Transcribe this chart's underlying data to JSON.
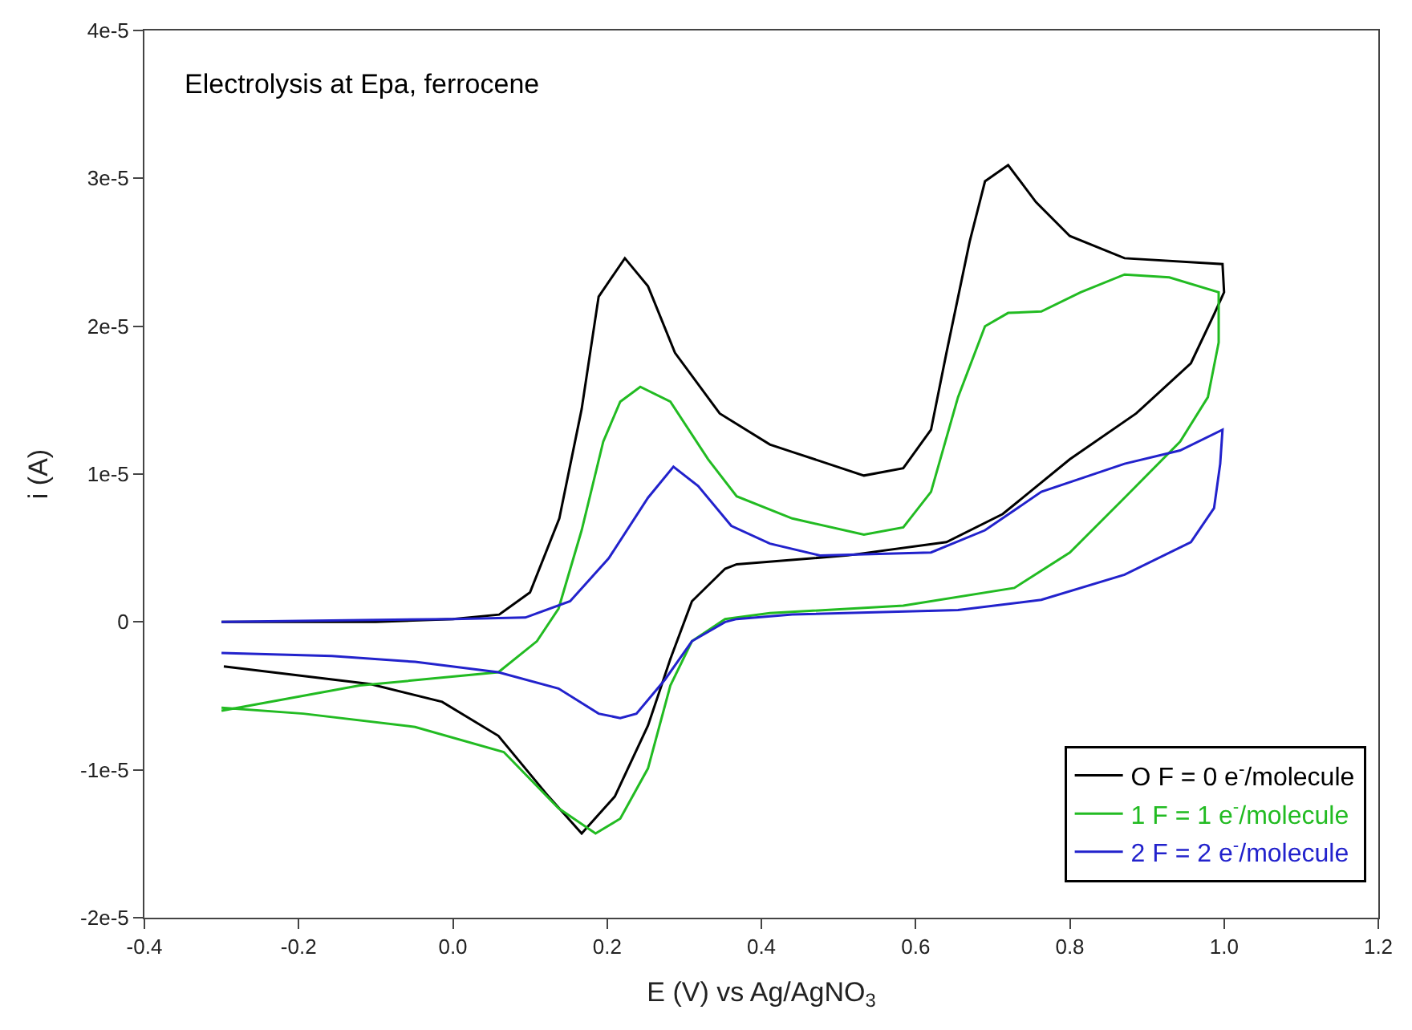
{
  "chart_data": {
    "type": "line",
    "xlabel": "E (V) vs Ag/AgNO$_{3}$",
    "ylabel": "i (A)",
    "annotations": [
      "Electrolysis at Epa, ferrocene"
    ],
    "xlim": [
      -0.4,
      1.2
    ],
    "ylim": [
      -2e-05,
      4e-05
    ],
    "xticks": [
      {
        "value": -0.4,
        "label": "-0.4"
      },
      {
        "value": -0.2,
        "label": "-0.2"
      },
      {
        "value": 0,
        "label": "0.0"
      },
      {
        "value": 0.2,
        "label": "0.2"
      },
      {
        "value": 0.4,
        "label": "0.4"
      },
      {
        "value": 0.6,
        "label": "0.6"
      },
      {
        "value": 0.8,
        "label": "0.8"
      },
      {
        "value": 1.0,
        "label": "1.0"
      },
      {
        "value": 1.2,
        "label": "1.2"
      }
    ],
    "yticks": [
      {
        "value": -2e-05,
        "label": "-2e-5"
      },
      {
        "value": -1e-05,
        "label": "-1e-5"
      },
      {
        "value": 0,
        "label": "0"
      },
      {
        "value": 1e-05,
        "label": "1e-5"
      },
      {
        "value": 2e-05,
        "label": "2e-5"
      },
      {
        "value": 3e-05,
        "label": "3e-5"
      },
      {
        "value": 4e-05,
        "label": "4e-5"
      }
    ],
    "legend": "bottom right",
    "marker": "none",
    "line_style": "solid",
    "series": [
      {
        "name": "O F = 0 e$^{-}$/molecule",
        "color": "#000000",
        "x": [
          -0.3,
          -0.1,
          0.0,
          0.06,
          0.1,
          0.138,
          0.167,
          0.189,
          0.223,
          0.253,
          0.288,
          0.346,
          0.411,
          0.44,
          0.533,
          0.584,
          0.62,
          0.64,
          0.67,
          0.69,
          0.72,
          0.756,
          0.8,
          0.871,
          0.998,
          1.0,
          0.987,
          0.957,
          0.886,
          0.8,
          0.713,
          0.64,
          0.512,
          0.368,
          0.353,
          0.31,
          0.282,
          0.253,
          0.21,
          0.167,
          0.124,
          0.059,
          -0.014,
          -0.107,
          -0.297
        ],
        "values": [
          0,
          0,
          2e-07,
          5e-07,
          2e-06,
          7e-06,
          1.44e-05,
          2.2e-05,
          2.46e-05,
          2.27e-05,
          1.82e-05,
          1.41e-05,
          1.2e-05,
          1.15e-05,
          9.9e-06,
          1.04e-05,
          1.3e-05,
          1.82e-05,
          2.57e-05,
          2.98e-05,
          3.09e-05,
          2.84e-05,
          2.61e-05,
          2.46e-05,
          2.42e-05,
          2.23e-05,
          2.08e-05,
          1.75e-05,
          1.41e-05,
          1.1e-05,
          7.3e-06,
          5.4e-06,
          4.5e-06,
          3.9e-06,
          3.6e-06,
          1.4e-06,
          -2.5e-06,
          -7e-06,
          -1.18e-05,
          -1.43e-05,
          -1.18e-05,
          -7.7e-06,
          -5.4e-06,
          -4.2e-06,
          -3e-06
        ]
      },
      {
        "name": "1 F = 1 e$^{-}$/molecule",
        "color": "#22bb22",
        "x": [
          -0.3,
          -0.121,
          0.059,
          0.109,
          0.137,
          0.167,
          0.195,
          0.217,
          0.243,
          0.282,
          0.331,
          0.368,
          0.44,
          0.533,
          0.584,
          0.62,
          0.655,
          0.69,
          0.72,
          0.763,
          0.814,
          0.871,
          0.929,
          0.993,
          0.993,
          0.979,
          0.943,
          0.871,
          0.8,
          0.728,
          0.584,
          0.411,
          0.353,
          0.31,
          0.282,
          0.253,
          0.217,
          0.185,
          0.137,
          0.066,
          -0.049,
          -0.194,
          -0.3
        ],
        "values": [
          -6e-06,
          -4.3e-06,
          -3.4e-06,
          -1.3e-06,
          9e-07,
          6.2e-06,
          1.22e-05,
          1.49e-05,
          1.59e-05,
          1.49e-05,
          1.1e-05,
          8.5e-06,
          7e-06,
          5.9e-06,
          6.4e-06,
          8.8e-06,
          1.52e-05,
          2e-05,
          2.09e-05,
          2.1e-05,
          2.23e-05,
          2.35e-05,
          2.33e-05,
          2.23e-05,
          1.89e-05,
          1.52e-05,
          1.22e-05,
          8.4e-06,
          4.7e-06,
          2.3e-06,
          1.1e-06,
          6e-07,
          2e-07,
          -1.3e-06,
          -4.3e-06,
          -9.9e-06,
          -1.33e-05,
          -1.43e-05,
          -1.26e-05,
          -8.8e-06,
          -7.1e-06,
          -6.2e-06,
          -5.8e-06
        ]
      },
      {
        "name": "2 F = 2 e$^{-}$/molecule",
        "color": "#2222cc",
        "x": [
          -0.3,
          0.0,
          0.094,
          0.152,
          0.202,
          0.253,
          0.286,
          0.318,
          0.361,
          0.411,
          0.476,
          0.62,
          0.69,
          0.763,
          0.871,
          0.943,
          0.998,
          0.995,
          0.987,
          0.957,
          0.871,
          0.763,
          0.655,
          0.44,
          0.368,
          0.353,
          0.31,
          0.275,
          0.238,
          0.217,
          0.189,
          0.137,
          0.059,
          -0.049,
          -0.157,
          -0.3
        ],
        "values": [
          0,
          2e-07,
          3e-07,
          1.4e-06,
          4.3e-06,
          8.4e-06,
          1.05e-05,
          9.2e-06,
          6.5e-06,
          5.3e-06,
          4.5e-06,
          4.7e-06,
          6.2e-06,
          8.8e-06,
          1.07e-05,
          1.16e-05,
          1.3e-05,
          1.07e-05,
          7.7e-06,
          5.4e-06,
          3.2e-06,
          1.5e-06,
          8e-07,
          5e-07,
          2e-07,
          0,
          -1.3e-06,
          -3.9e-06,
          -6.2e-06,
          -6.5e-06,
          -6.2e-06,
          -4.5e-06,
          -3.4e-06,
          -2.7e-06,
          -2.3e-06,
          -2.1e-06
        ]
      }
    ]
  }
}
